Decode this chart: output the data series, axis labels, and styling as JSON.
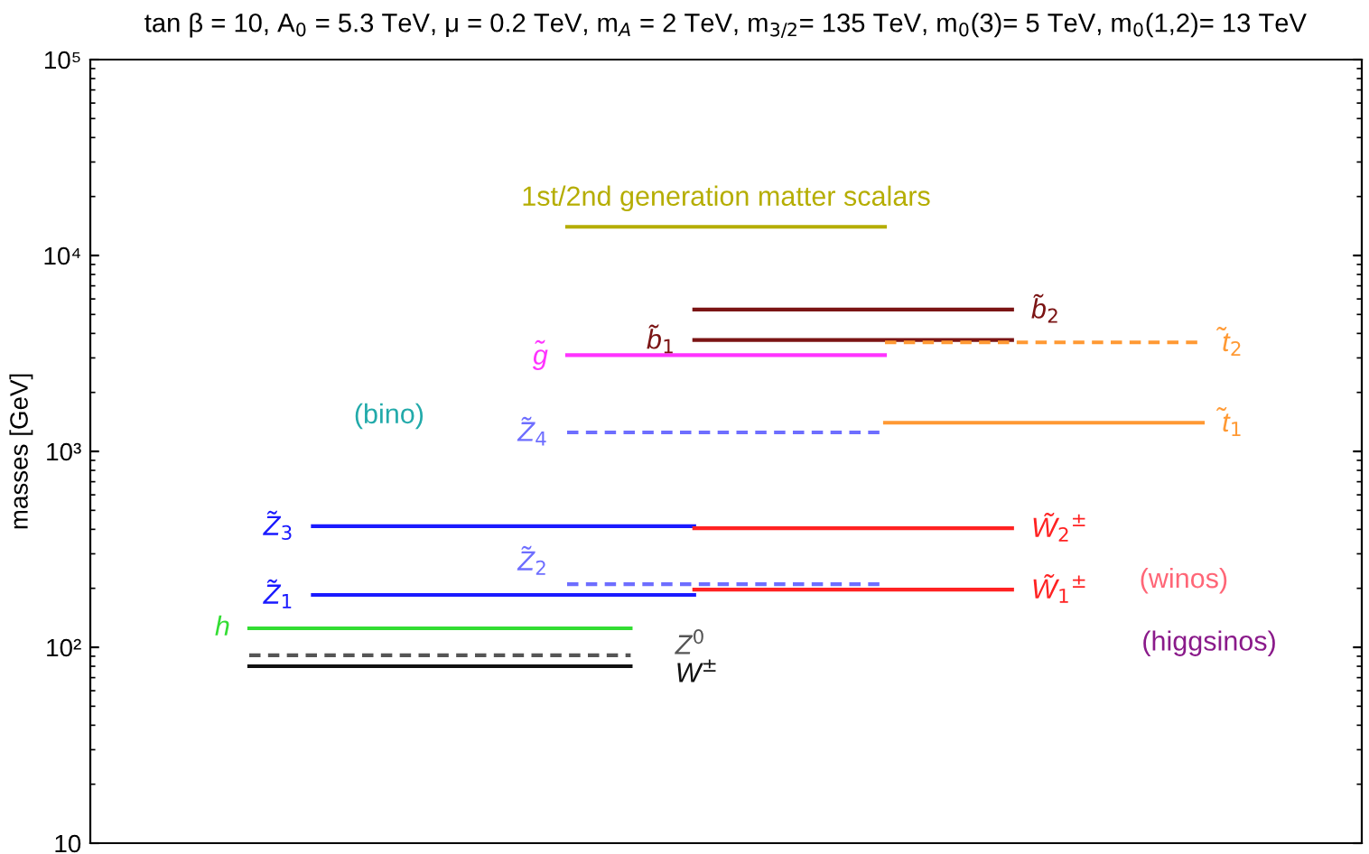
{
  "chart_data": {
    "type": "line",
    "title": "tan β = 10, A$_{0}$ = 5.3 TeV, μ = 0.2 TeV, m$_{A}$ = 2 TeV, m$_{3/2}$= 135 TeV, m$_{0}$(3)= 5 TeV, m$_{0}$(1,2)= 13 TeV",
    "ylabel": "masses [GeV]",
    "log": "y",
    "categories": [
      null,
      null,
      null,
      null,
      null,
      null,
      null,
      null,
      null,
      null,
      null,
      null,
      null,
      null,
      null,
      null,
      null,
      null,
      null,
      null
    ],
    "ylim": [
      10,
      100000
    ],
    "yticks": [
      10,
      {
        "value": 100,
        "label": "10²"
      },
      {
        "value": 1000,
        "label": "10³"
      },
      {
        "value": 10000,
        "label": "10⁴"
      },
      {
        "value": 100000,
        "label": "10⁵"
      }
    ],
    "tick_labels": "y",
    "grid": false,
    "legend": false,
    "marker": "none",
    "series": [
      {
        "name": "1st/2nd generation matter scalars",
        "color": "#b5ad00",
        "values": [
          null,
          null,
          null,
          null,
          null,
          null,
          null,
          14000,
          14000,
          14000,
          14000,
          14000,
          14000,
          null,
          null,
          null,
          null,
          null,
          null,
          null
        ]
      },
      {
        "name": "b̃$_{2}$",
        "color": "#7b1414",
        "values": [
          null,
          null,
          null,
          null,
          null,
          null,
          null,
          null,
          null,
          5300,
          5300,
          5300,
          5300,
          5300,
          5300,
          null,
          null,
          null,
          null,
          null
        ]
      },
      {
        "name": "b̃$_{1}$",
        "color": "#7b1414",
        "values": [
          null,
          null,
          null,
          null,
          null,
          null,
          null,
          null,
          null,
          3700,
          3700,
          3700,
          3700,
          3700,
          3700,
          null,
          null,
          null,
          null,
          null
        ]
      },
      {
        "name": "t̃$_{2}$",
        "color": "#ff9933",
        "line_style": "dashed",
        "values": [
          null,
          null,
          null,
          null,
          null,
          null,
          null,
          null,
          null,
          null,
          null,
          null,
          3600,
          3600,
          3600,
          3600,
          3600,
          3600,
          null,
          null
        ]
      },
      {
        "name": "g̃",
        "color": "#ff33ff",
        "values": [
          null,
          null,
          null,
          null,
          null,
          null,
          null,
          3100,
          3100,
          3100,
          3100,
          3100,
          3100,
          null,
          null,
          null,
          null,
          null,
          null,
          null
        ]
      },
      {
        "name": "t̃$_{1}$",
        "color": "#ff9933",
        "values": [
          null,
          null,
          null,
          null,
          null,
          null,
          null,
          null,
          null,
          null,
          null,
          null,
          1400,
          1400,
          1400,
          1400,
          1400,
          1400,
          null,
          null
        ]
      },
      {
        "name": "Z̃$_{4}$",
        "color": "#6e6eff",
        "line_style": "dashed",
        "values": [
          null,
          null,
          null,
          null,
          null,
          null,
          null,
          1250,
          1250,
          1250,
          1250,
          1250,
          1250,
          null,
          null,
          null,
          null,
          null,
          null,
          null
        ]
      },
      {
        "name": "Z̃$_{3}$",
        "color": "#1a1aff",
        "values": [
          null,
          null,
          null,
          415,
          415,
          415,
          415,
          415,
          415,
          415,
          null,
          null,
          null,
          null,
          null,
          null,
          null,
          null,
          null,
          null
        ]
      },
      {
        "name": "W̃$_{2}$$^{±}$",
        "color": "#ff2222",
        "values": [
          null,
          null,
          null,
          null,
          null,
          null,
          null,
          null,
          null,
          405,
          405,
          405,
          405,
          405,
          405,
          null,
          null,
          null,
          null,
          null
        ]
      },
      {
        "name": "Z̃$_{2}$",
        "color": "#6e6eff",
        "line_style": "dashed",
        "values": [
          null,
          null,
          null,
          null,
          null,
          null,
          null,
          210,
          210,
          210,
          210,
          210,
          210,
          null,
          null,
          null,
          null,
          null,
          null,
          null
        ]
      },
      {
        "name": "W̃$_{1}$$^{±}$",
        "color": "#ff2222",
        "values": [
          null,
          null,
          null,
          null,
          null,
          null,
          null,
          null,
          null,
          197,
          197,
          197,
          197,
          197,
          197,
          null,
          null,
          null,
          null,
          null
        ]
      },
      {
        "name": "Z̃$_{1}$",
        "color": "#1a1aff",
        "values": [
          null,
          null,
          null,
          185,
          185,
          185,
          185,
          185,
          185,
          185,
          null,
          null,
          null,
          null,
          null,
          null,
          null,
          null,
          null,
          null
        ]
      },
      {
        "name": "h",
        "color": "#33dd33",
        "values": [
          null,
          null,
          125,
          125,
          125,
          125,
          125,
          125,
          125,
          null,
          null,
          null,
          null,
          null,
          null,
          null,
          null,
          null,
          null,
          null
        ]
      },
      {
        "name": "Z$^{0}$",
        "color": "#555555",
        "line_style": "dashed",
        "values": [
          null,
          null,
          91,
          91,
          91,
          91,
          91,
          91,
          91,
          null,
          null,
          null,
          null,
          null,
          null,
          null,
          null,
          null,
          null,
          null
        ]
      },
      {
        "name": "W$^{±}$",
        "color": "#111111",
        "values": [
          null,
          null,
          80,
          80,
          80,
          80,
          80,
          80,
          80,
          null,
          null,
          null,
          null,
          null,
          null,
          null,
          null,
          null,
          null,
          null
        ]
      }
    ],
    "annotations": [
      "(bino)",
      "(winos)",
      "(higgsinos)"
    ]
  }
}
